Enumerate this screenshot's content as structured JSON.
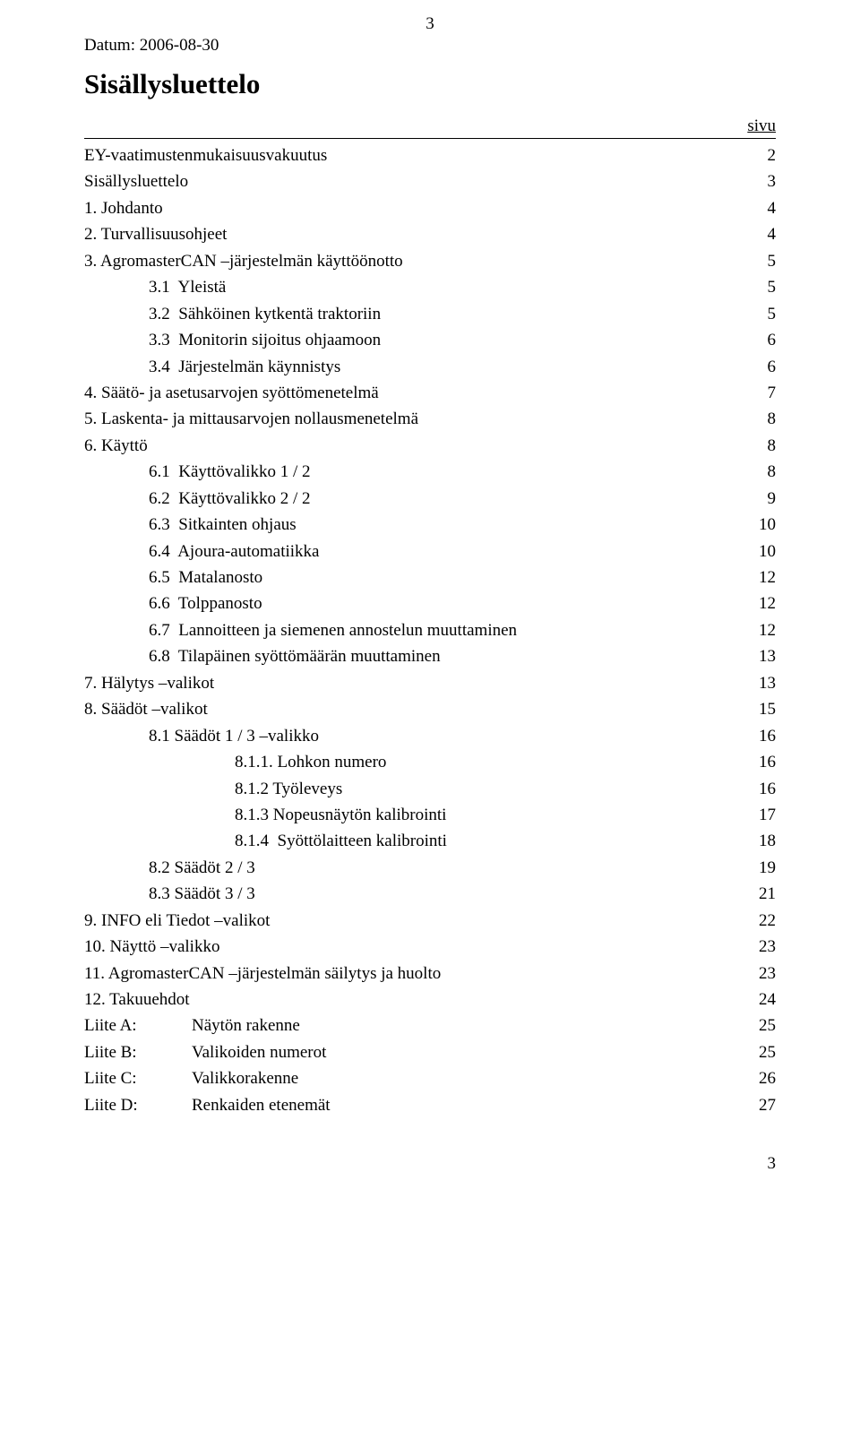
{
  "page_number_top": "3",
  "date_line": "Datum: 2006-08-30",
  "title": "Sisällysluettelo",
  "page_col_header": "sivu",
  "toc": [
    {
      "label": "EY-vaatimustenmukaisuusvakuutus",
      "page": "2",
      "indent": 0
    },
    {
      "label": "Sisällysluettelo",
      "page": "3",
      "indent": 0
    },
    {
      "label": "1. Johdanto",
      "page": "4",
      "indent": 0
    },
    {
      "label": "2. Turvallisuusohjeet",
      "page": "4",
      "indent": 0
    },
    {
      "label": "3. AgromasterCAN –järjestelmän käyttöönotto",
      "page": "5",
      "indent": 0
    },
    {
      "label": "3.1  Yleistä",
      "page": "5",
      "indent": 1
    },
    {
      "label": "3.2  Sähköinen kytkentä traktoriin",
      "page": "5",
      "indent": 1
    },
    {
      "label": "3.3  Monitorin sijoitus ohjaamoon",
      "page": "6",
      "indent": 1
    },
    {
      "label": "3.4  Järjestelmän käynnistys",
      "page": "6",
      "indent": 1
    },
    {
      "label": "4. Säätö- ja asetusarvojen syöttömenetelmä",
      "page": "7",
      "indent": 0
    },
    {
      "label": "5. Laskenta- ja mittausarvojen nollausmenetelmä",
      "page": "8",
      "indent": 0
    },
    {
      "label": "6. Käyttö",
      "page": "8",
      "indent": 0
    },
    {
      "label": "6.1  Käyttövalikko 1 / 2",
      "page": "8",
      "indent": 1
    },
    {
      "label": "6.2  Käyttövalikko 2 / 2",
      "page": "9",
      "indent": 1
    },
    {
      "label": "6.3  Sitkainten ohjaus",
      "page": "10",
      "indent": 1
    },
    {
      "label": "6.4  Ajoura-automatiikka",
      "page": "10",
      "indent": 1
    },
    {
      "label": "6.5  Matalanosto",
      "page": "12",
      "indent": 1
    },
    {
      "label": "6.6  Tolppanosto",
      "page": "12",
      "indent": 1
    },
    {
      "label": "6.7  Lannoitteen ja siemenen annostelun muuttaminen",
      "page": "12",
      "indent": 1
    },
    {
      "label": "6.8  Tilapäinen syöttömäärän muuttaminen",
      "page": "13",
      "indent": 1
    },
    {
      "label": "7. Hälytys –valikot",
      "page": "13",
      "indent": 0
    },
    {
      "label": "8. Säädöt –valikot",
      "page": "15",
      "indent": 0
    },
    {
      "label": "8.1 Säädöt 1 / 3 –valikko",
      "page": "16",
      "indent": 1
    },
    {
      "label": "8.1.1. Lohkon numero",
      "page": "16",
      "indent": 2
    },
    {
      "label": "8.1.2 Työleveys",
      "page": "16",
      "indent": 2
    },
    {
      "label": "8.1.3 Nopeusnäytön kalibrointi",
      "page": "17",
      "indent": 2
    },
    {
      "label": "8.1.4  Syöttölaitteen kalibrointi",
      "page": "18",
      "indent": 2
    },
    {
      "label": "8.2 Säädöt 2 / 3",
      "page": "19",
      "indent": 1
    },
    {
      "label": "8.3 Säädöt 3 / 3",
      "page": "21",
      "indent": 1
    },
    {
      "label": "9. INFO eli Tiedot –valikot",
      "page": "22",
      "indent": 0
    },
    {
      "label": "10. Näyttö –valikko",
      "page": "23",
      "indent": 0
    },
    {
      "label": "11. AgromasterCAN –järjestelmän säilytys ja huolto",
      "page": "23",
      "indent": 0
    },
    {
      "label": "12. Takuuehdot",
      "page": "24",
      "indent": 0
    }
  ],
  "appendix": [
    {
      "col1": "Liite A:",
      "col2": "Näytön rakenne",
      "page": "25"
    },
    {
      "col1": "Liite B:",
      "col2": "Valikoiden numerot",
      "page": "25"
    },
    {
      "col1": "Liite C:",
      "col2": "Valikkorakenne",
      "page": "26"
    },
    {
      "col1": "Liite D:",
      "col2": "Renkaiden etenemät",
      "page": "27"
    }
  ],
  "page_number_bottom": "3"
}
